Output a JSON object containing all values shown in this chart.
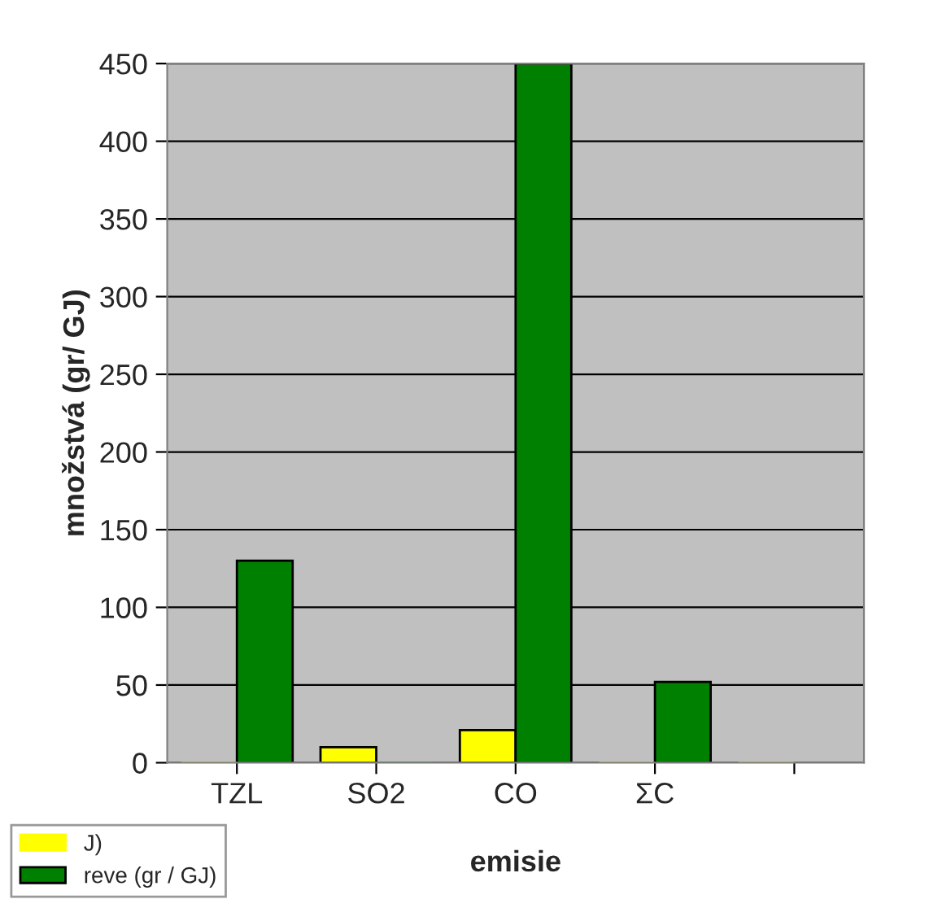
{
  "chart_data": {
    "type": "bar",
    "xlabel": "emisie",
    "ylabel": "množstvá (gr/ GJ)",
    "categories": [
      "TZL",
      "SO2",
      "CO",
      "ΣC",
      null
    ],
    "series": [
      {
        "name": "J)",
        "color": "#ffff00",
        "values": [
          0,
          10,
          21,
          0,
          0
        ]
      },
      {
        "name": "reve (gr / GJ)",
        "color": "#008000",
        "values": [
          130,
          0,
          450,
          52,
          null
        ]
      }
    ],
    "ylim": [
      0,
      450
    ],
    "yticks": [
      0,
      50,
      100,
      150,
      200,
      250,
      300,
      350,
      400,
      450
    ],
    "grid": "y",
    "legend": "bottom left"
  }
}
